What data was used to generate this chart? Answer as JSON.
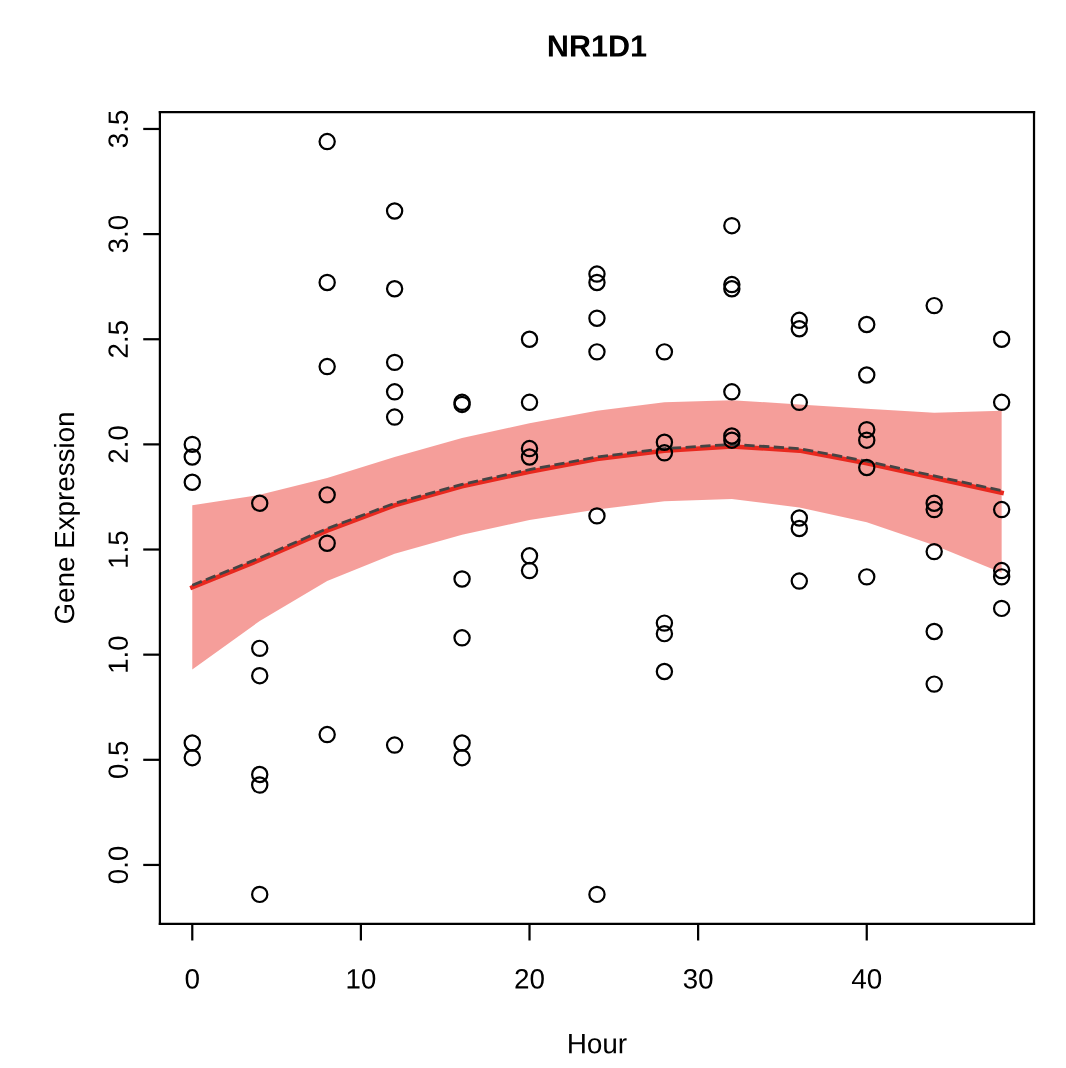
{
  "chart_data": {
    "type": "scatter",
    "title": "NR1D1",
    "xlabel": "Hour",
    "ylabel": "Gene Expression",
    "xlim": [
      -1.92,
      49.92
    ],
    "ylim": [
      -0.28,
      3.58
    ],
    "xticks": [
      0,
      10,
      20,
      30,
      40
    ],
    "yticks": [
      {
        "value": 0,
        "label": "0.0"
      },
      {
        "value": 0.5,
        "label": "0.5"
      },
      {
        "value": 1,
        "label": "1.0"
      },
      {
        "value": 1.5,
        "label": "1.5"
      },
      {
        "value": 2,
        "label": "2.0"
      },
      {
        "value": 2.5,
        "label": "2.5"
      },
      {
        "value": 3,
        "label": "3.0"
      },
      {
        "value": 3.5,
        "label": "3.5"
      }
    ],
    "grid": false,
    "series": [
      {
        "marker": "circle",
        "color": "#000000",
        "x": [
          0,
          0,
          0,
          0,
          0,
          4,
          4,
          4,
          4,
          4,
          4,
          8,
          8,
          8,
          8,
          8,
          8,
          12,
          12,
          12,
          12,
          12,
          12,
          16,
          16,
          16,
          16,
          16,
          16,
          20,
          20,
          20,
          20,
          20,
          20,
          24,
          24,
          24,
          24,
          24,
          24,
          28,
          28,
          28,
          28,
          28,
          28,
          32,
          32,
          32,
          32,
          32,
          32,
          36,
          36,
          36,
          36,
          36,
          36,
          40,
          40,
          40,
          40,
          40,
          40,
          44,
          44,
          44,
          44,
          44,
          44,
          48,
          48,
          48,
          48,
          48,
          48
        ],
        "values": [
          2.0,
          1.94,
          1.82,
          0.58,
          0.51,
          1.72,
          1.03,
          0.9,
          0.43,
          0.38,
          -0.14,
          3.44,
          2.77,
          2.37,
          1.76,
          1.53,
          0.62,
          3.11,
          2.74,
          2.39,
          2.25,
          2.13,
          0.57,
          2.2,
          2.19,
          1.36,
          1.08,
          0.58,
          0.51,
          2.5,
          2.2,
          1.98,
          1.94,
          1.47,
          1.4,
          2.81,
          2.77,
          2.6,
          2.44,
          1.66,
          -0.14,
          2.44,
          2.01,
          1.96,
          1.15,
          1.1,
          0.92,
          3.04,
          2.76,
          2.74,
          2.25,
          2.04,
          2.02,
          2.59,
          2.55,
          2.2,
          1.65,
          1.6,
          1.35,
          2.57,
          2.33,
          2.07,
          2.02,
          1.89,
          1.37,
          2.66,
          1.72,
          1.69,
          1.49,
          1.11,
          0.86,
          2.5,
          2.2,
          1.69,
          1.4,
          1.37,
          1.22
        ]
      },
      {
        "type": "line",
        "color": "#e8281e",
        "line_style": "solid",
        "marker": "none",
        "x": [
          0,
          4,
          8,
          12,
          16,
          20,
          24,
          28,
          32,
          36,
          40,
          44,
          48
        ],
        "values": [
          1.32,
          1.45,
          1.59,
          1.71,
          1.8,
          1.87,
          1.93,
          1.97,
          1.99,
          1.97,
          1.91,
          1.84,
          1.77
        ],
        "lower": [
          0.93,
          1.16,
          1.35,
          1.48,
          1.57,
          1.64,
          1.69,
          1.73,
          1.74,
          1.7,
          1.63,
          1.52,
          1.39
        ],
        "upper": [
          1.71,
          1.76,
          1.84,
          1.94,
          2.03,
          2.1,
          2.16,
          2.2,
          2.21,
          2.19,
          2.17,
          2.15,
          2.16
        ]
      },
      {
        "type": "line",
        "color": "#444444",
        "line_style": "dashed",
        "marker": "none",
        "x": [
          0,
          4,
          8,
          12,
          16,
          20,
          24,
          28,
          32,
          36,
          40,
          44,
          48
        ],
        "values": [
          1.33,
          1.46,
          1.6,
          1.72,
          1.81,
          1.88,
          1.94,
          1.98,
          2.0,
          1.98,
          1.92,
          1.85,
          1.78
        ]
      }
    ]
  }
}
